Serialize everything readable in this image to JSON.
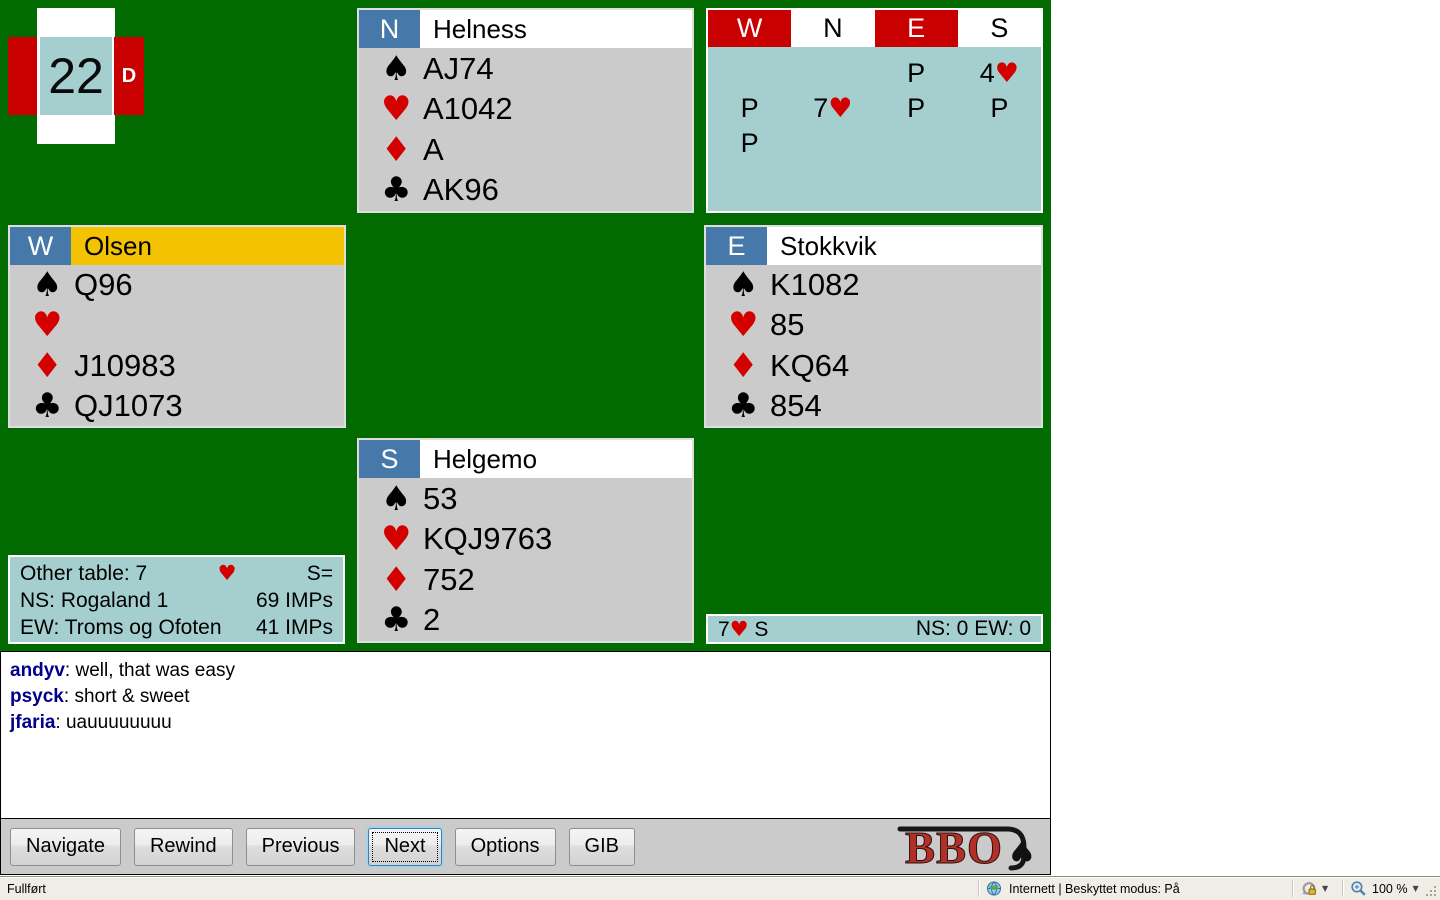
{
  "board": {
    "number": "22",
    "dealer_marker": "D"
  },
  "symbols": {
    "spade": "♠",
    "heart": "♥",
    "diamond": "♦",
    "club": "♣"
  },
  "hands": {
    "north": {
      "seat": "N",
      "name": "Helness",
      "spades": "AJ74",
      "hearts": "A1042",
      "diamonds": "A",
      "clubs": "AK96"
    },
    "west": {
      "seat": "W",
      "name": "Olsen",
      "spades": "Q96",
      "hearts": "",
      "diamonds": "J10983",
      "clubs": "QJ1073"
    },
    "east": {
      "seat": "E",
      "name": "Stokkvik",
      "spades": "K1082",
      "hearts": "85",
      "diamonds": "KQ64",
      "clubs": "854"
    },
    "south": {
      "seat": "S",
      "name": "Helgemo",
      "spades": "53",
      "hearts": "KQJ9763",
      "diamonds": "752",
      "clubs": "2"
    }
  },
  "auction": {
    "columns": [
      "W",
      "N",
      "E",
      "S"
    ],
    "vulnerable_columns": [
      "W",
      "E"
    ],
    "rows": [
      [
        "",
        "",
        "P",
        "4♥"
      ],
      [
        "P",
        "7♥",
        "P",
        "P"
      ],
      [
        "P",
        "",
        "",
        ""
      ]
    ]
  },
  "other_table": {
    "title": "Other table: 7♥S=",
    "ns_label": "NS: Rogaland 1",
    "ns_score": "69 IMPs",
    "ew_label": "EW: Troms og Ofoten",
    "ew_score": "41 IMPs"
  },
  "contract_bar": {
    "contract": "7♥ S",
    "score": "NS: 0 EW: 0"
  },
  "chat": {
    "separator": ": ",
    "messages": [
      {
        "user": "andyv",
        "text": "well, that was easy"
      },
      {
        "user": "psyck",
        "text": "short & sweet"
      },
      {
        "user": "jfaria",
        "text": "uauuuuuuuu"
      }
    ]
  },
  "toolbar": {
    "buttons": [
      "Navigate",
      "Rewind",
      "Previous",
      "Next",
      "Options",
      "GIB"
    ],
    "focused": "Next"
  },
  "logo": {
    "text": "BBO",
    "spade": "♠"
  },
  "statusbar": {
    "left": "Fullført",
    "zone": "Internett | Beskyttet modus: På",
    "zoom": "100 %",
    "dropdown_glyph": "▼"
  },
  "colors": {
    "table_green": "#016B01",
    "panel_gray": "#CBCBCB",
    "teal": "#A5CFCF",
    "seat_blue": "#4679A9",
    "vul_red": "#C80000",
    "active_yellow": "#F3C200",
    "suit_red": "#D40000",
    "chat_user_navy": "#00008B"
  }
}
